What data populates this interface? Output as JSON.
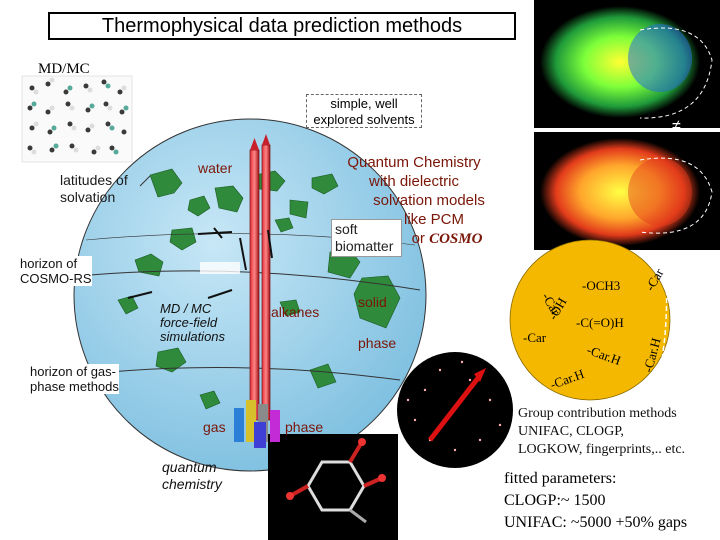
{
  "title": "Thermophysical data prediction methods",
  "md_mc_label": "MD/MC",
  "simple_solvents": [
    "simple, well",
    "explored solvents"
  ],
  "neq_symbol": "≠",
  "latitudes": [
    "latitudes of",
    "solvation"
  ],
  "water": "water",
  "quantum_chem": [
    "Quantum Chemistry",
    "with dielectric",
    "solvation models",
    "like PCM"
  ],
  "or_cosmo_prefix": "or",
  "cosmo": "COSMO",
  "soft_biomatter": [
    "soft",
    "biomatter"
  ],
  "horizon_cosmors": [
    "horizon of",
    "COSMO-RS"
  ],
  "md_mc_ff": [
    "MD / MC",
    "force-field",
    "simulations"
  ],
  "alkanes": "alkanes",
  "solid": "solid",
  "phase_right": "phase",
  "horizon_gas": [
    "horizon of gas-",
    "phase methods"
  ],
  "gas": "gas",
  "phase_bottom": "phase",
  "quantum_chemistry_bottom": [
    "quantum",
    "chemistry"
  ],
  "group_labels": {
    "och3": "-OCH3",
    "car_top": "-Car",
    "car_right": "-Car",
    "oh": "-OH",
    "c_oh": "-C(=O)H",
    "car_left": "-Car",
    "carh_mid": "-Car.H",
    "carh_right": "-Car.H",
    "carh_bottom": "-Car.H"
  },
  "group_contribution": [
    "Group contribution methods",
    "UNIFAC, CLOGP,",
    "LOGKOW, fingerprints,.. etc."
  ],
  "fitted": [
    "fitted parameters:",
    "CLOGP:~ 1500",
    "UNIFAC: ~5000 +50% gaps"
  ],
  "colors": {
    "globe": "#9fd2ec",
    "land": "#2f8a3b",
    "rocket": "#c8202b",
    "orange_disc": "#f5b800",
    "qc_text": "#7a1608"
  }
}
